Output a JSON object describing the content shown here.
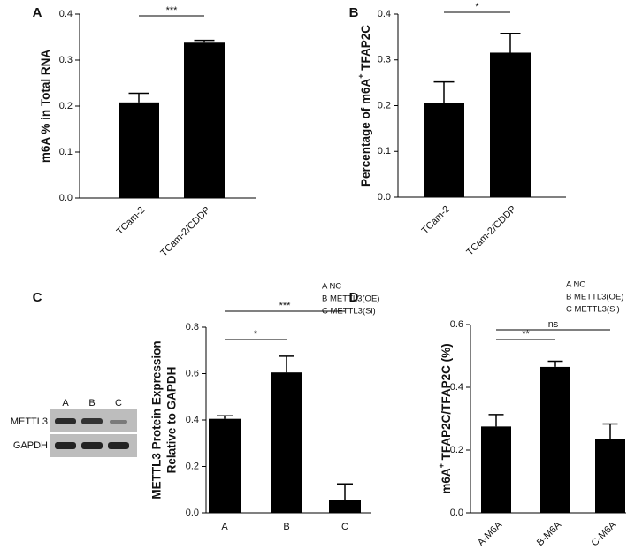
{
  "chart_data": [
    {
      "type": "bar",
      "panel": "A",
      "ylabel": "m6A % in Total RNA",
      "categories": [
        "TCam-2",
        "TCam-2/CDDP"
      ],
      "values": [
        0.208,
        0.338
      ],
      "errors": [
        0.02,
        0.005
      ],
      "color": "#000000",
      "ylim": [
        0,
        0.4
      ],
      "yticks": [
        {
          "value": 0,
          "label": "0.0"
        },
        0.1,
        0.2,
        0.3,
        0.4
      ],
      "significance": [
        {
          "from": 0,
          "to": 1,
          "label": "***"
        }
      ]
    },
    {
      "type": "bar",
      "panel": "B",
      "ylabel": "Percentage of m6A",
      "ylabel_sup": "+",
      "ylabel_rest": " TFAP2C",
      "categories": [
        "TCam-2",
        "TCam-2/CDDP"
      ],
      "values": [
        0.206,
        0.316
      ],
      "errors": [
        0.046,
        0.042
      ],
      "color": "#000000",
      "ylim": [
        0,
        0.4
      ],
      "yticks": [
        {
          "value": 0,
          "label": "0.0"
        },
        0.1,
        0.2,
        0.3,
        0.4
      ],
      "significance": [
        {
          "from": 0,
          "to": 1,
          "label": "*"
        }
      ]
    },
    {
      "type": "bar",
      "panel": "C",
      "ylabel": [
        "METTL3 Protein Expression",
        "Relative to GAPDH"
      ],
      "categories": [
        "A",
        "B",
        "C"
      ],
      "values": [
        0.405,
        0.605,
        0.055
      ],
      "errors": [
        0.013,
        0.07,
        0.07
      ],
      "color": "#000000",
      "ylim": [
        0,
        0.8
      ],
      "yticks": [
        {
          "value": 0,
          "label": "0.0"
        },
        0.2,
        0.4,
        0.6,
        0.8
      ],
      "significance": [
        {
          "from": 0,
          "to": 1,
          "label": "*"
        },
        {
          "from": 0,
          "to": 2,
          "label": "***"
        }
      ],
      "notes": [
        "A NC",
        "B METTL3(OE)",
        "C METTL3(Si)"
      ],
      "blot": {
        "lanes": [
          "A",
          "B",
          "C"
        ],
        "rows": [
          "METTL3",
          "GAPDH"
        ]
      }
    },
    {
      "type": "bar",
      "panel": "D",
      "ylabel": "m6A",
      "ylabel_sup": "+",
      "ylabel_rest": " TFAP2C/TFAP2C (%)",
      "categories": [
        "A-M6A",
        "B-M6A",
        "C-M6A"
      ],
      "values": [
        0.275,
        0.465,
        0.235
      ],
      "errors": [
        0.038,
        0.018,
        0.048
      ],
      "color": "#000000",
      "ylim": [
        0,
        0.6
      ],
      "yticks": [
        {
          "value": 0,
          "label": "0.0"
        },
        0.2,
        0.4,
        0.6
      ],
      "significance": [
        {
          "from": 0,
          "to": 1,
          "label": "**"
        },
        {
          "from": 0,
          "to": 2,
          "label": "ns"
        }
      ],
      "notes": [
        "A NC",
        "B METTL3(OE)",
        "C METTL3(Si)"
      ]
    }
  ]
}
